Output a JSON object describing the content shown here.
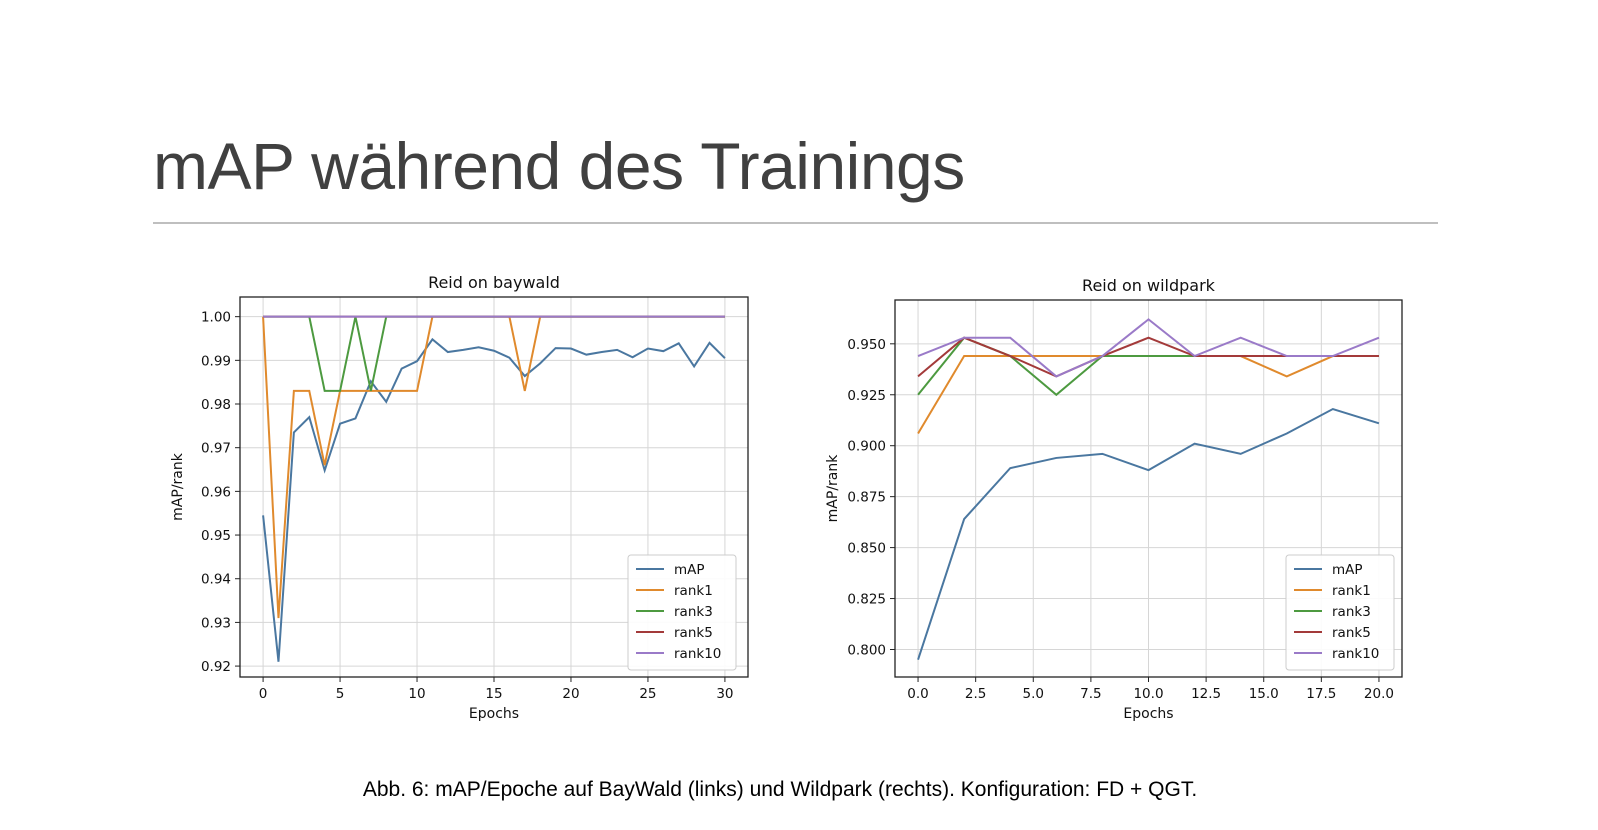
{
  "slide": {
    "title": "mAP während des Trainings",
    "caption": "Abb. 6: mAP/Epoche auf BayWald (links) und Wildpark (rechts). Konfiguration: FD + QGT."
  },
  "chart_data": [
    {
      "type": "line",
      "title": "Reid on baywald",
      "xlabel": "Epochs",
      "ylabel": "mAP/rank",
      "xlim": [
        -1.5,
        31.5
      ],
      "ylim": [
        0.9175,
        1.0045
      ],
      "xticks": [
        0,
        5,
        10,
        15,
        20,
        25,
        30
      ],
      "xtick_labels": [
        "0",
        "5",
        "10",
        "15",
        "20",
        "25",
        "30"
      ],
      "yticks": [
        0.92,
        0.93,
        0.94,
        0.95,
        0.96,
        0.97,
        0.98,
        0.99,
        1.0
      ],
      "ytick_labels": [
        "0.92",
        "0.93",
        "0.94",
        "0.95",
        "0.96",
        "0.97",
        "0.98",
        "0.99",
        "1.00"
      ],
      "grid": true,
      "legend_position": "lower-right",
      "series": [
        {
          "name": "mAP",
          "color": "#4a77a0",
          "x": [
            0,
            1,
            2,
            3,
            4,
            5,
            6,
            7,
            8,
            9,
            10,
            11,
            12,
            13,
            14,
            15,
            16,
            17,
            18,
            19,
            20,
            21,
            22,
            23,
            24,
            25,
            26,
            27,
            28,
            29,
            30
          ],
          "y": [
            0.9545,
            0.921,
            0.9735,
            0.977,
            0.9648,
            0.9755,
            0.9767,
            0.9852,
            0.9805,
            0.9881,
            0.9898,
            0.9948,
            0.9919,
            0.9924,
            0.993,
            0.9922,
            0.9906,
            0.9864,
            0.9893,
            0.9928,
            0.9927,
            0.9913,
            0.9919,
            0.9924,
            0.9907,
            0.9927,
            0.9921,
            0.9939,
            0.9886,
            0.994,
            0.9905
          ]
        },
        {
          "name": "rank1",
          "color": "#e08a2d",
          "x": [
            0,
            1,
            2,
            3,
            4,
            5,
            6,
            7,
            8,
            9,
            10,
            11,
            12,
            13,
            14,
            15,
            16,
            17,
            18,
            19,
            20,
            21,
            22,
            23,
            24,
            25,
            26,
            27,
            28,
            29,
            30
          ],
          "y": [
            1.0,
            0.931,
            0.983,
            0.983,
            0.966,
            0.983,
            0.983,
            0.983,
            0.983,
            0.983,
            0.983,
            1.0,
            1.0,
            1.0,
            1.0,
            1.0,
            1.0,
            0.983,
            1.0,
            1.0,
            1.0,
            1.0,
            1.0,
            1.0,
            1.0,
            1.0,
            1.0,
            1.0,
            1.0,
            1.0,
            1.0
          ]
        },
        {
          "name": "rank3",
          "color": "#4d9a40",
          "x": [
            0,
            1,
            2,
            3,
            4,
            5,
            6,
            7,
            8,
            9,
            10,
            11,
            12,
            13,
            14,
            15,
            16,
            17,
            18,
            19,
            20,
            21,
            22,
            23,
            24,
            25,
            26,
            27,
            28,
            29,
            30
          ],
          "y": [
            1.0,
            1.0,
            1.0,
            1.0,
            0.983,
            0.983,
            1.0,
            0.983,
            1.0,
            1.0,
            1.0,
            1.0,
            1.0,
            1.0,
            1.0,
            1.0,
            1.0,
            1.0,
            1.0,
            1.0,
            1.0,
            1.0,
            1.0,
            1.0,
            1.0,
            1.0,
            1.0,
            1.0,
            1.0,
            1.0,
            1.0
          ]
        },
        {
          "name": "rank5",
          "color": "#a33a3a",
          "x": [
            0,
            1,
            2,
            3,
            4,
            5,
            6,
            7,
            8,
            9,
            10,
            11,
            12,
            13,
            14,
            15,
            16,
            17,
            18,
            19,
            20,
            21,
            22,
            23,
            24,
            25,
            26,
            27,
            28,
            29,
            30
          ],
          "y": [
            1.0,
            1.0,
            1.0,
            1.0,
            1.0,
            1.0,
            1.0,
            1.0,
            1.0,
            1.0,
            1.0,
            1.0,
            1.0,
            1.0,
            1.0,
            1.0,
            1.0,
            1.0,
            1.0,
            1.0,
            1.0,
            1.0,
            1.0,
            1.0,
            1.0,
            1.0,
            1.0,
            1.0,
            1.0,
            1.0,
            1.0
          ]
        },
        {
          "name": "rank10",
          "color": "#9a7ac8",
          "x": [
            0,
            1,
            2,
            3,
            4,
            5,
            6,
            7,
            8,
            9,
            10,
            11,
            12,
            13,
            14,
            15,
            16,
            17,
            18,
            19,
            20,
            21,
            22,
            23,
            24,
            25,
            26,
            27,
            28,
            29,
            30
          ],
          "y": [
            1.0,
            1.0,
            1.0,
            1.0,
            1.0,
            1.0,
            1.0,
            1.0,
            1.0,
            1.0,
            1.0,
            1.0,
            1.0,
            1.0,
            1.0,
            1.0,
            1.0,
            1.0,
            1.0,
            1.0,
            1.0,
            1.0,
            1.0,
            1.0,
            1.0,
            1.0,
            1.0,
            1.0,
            1.0,
            1.0,
            1.0
          ]
        }
      ]
    },
    {
      "type": "line",
      "title": "Reid on wildpark",
      "xlabel": "Epochs",
      "ylabel": "mAP/rank",
      "xlim": [
        -1.0,
        21.0
      ],
      "ylim": [
        0.7865,
        0.9715
      ],
      "xticks": [
        0,
        2.5,
        5,
        7.5,
        10,
        12.5,
        15,
        17.5,
        20
      ],
      "xtick_labels": [
        "0.0",
        "2.5",
        "5.0",
        "7.5",
        "10.0",
        "12.5",
        "15.0",
        "17.5",
        "20.0"
      ],
      "yticks": [
        0.8,
        0.825,
        0.85,
        0.875,
        0.9,
        0.925,
        0.95
      ],
      "ytick_labels": [
        "0.800",
        "0.825",
        "0.850",
        "0.875",
        "0.900",
        "0.925",
        "0.950"
      ],
      "grid": true,
      "legend_position": "lower-right",
      "series": [
        {
          "name": "mAP",
          "color": "#4a77a0",
          "x": [
            0,
            2,
            4,
            6,
            8,
            10,
            12,
            14,
            16,
            18,
            20
          ],
          "y": [
            0.795,
            0.864,
            0.889,
            0.894,
            0.896,
            0.888,
            0.901,
            0.896,
            0.906,
            0.918,
            0.911
          ]
        },
        {
          "name": "rank1",
          "color": "#e08a2d",
          "x": [
            0,
            2,
            4,
            6,
            8,
            10,
            12,
            14,
            16,
            18,
            20
          ],
          "y": [
            0.906,
            0.944,
            0.944,
            0.944,
            0.944,
            0.944,
            0.944,
            0.944,
            0.934,
            0.944,
            0.944
          ]
        },
        {
          "name": "rank3",
          "color": "#4d9a40",
          "x": [
            0,
            2,
            4,
            6,
            8,
            10,
            12,
            14,
            16,
            18,
            20
          ],
          "y": [
            0.925,
            0.953,
            0.944,
            0.925,
            0.944,
            0.944,
            0.944,
            0.944,
            0.944,
            0.944,
            0.944
          ]
        },
        {
          "name": "rank5",
          "color": "#a33a3a",
          "x": [
            0,
            2,
            4,
            6,
            8,
            10,
            12,
            14,
            16,
            18,
            20
          ],
          "y": [
            0.934,
            0.953,
            0.944,
            0.934,
            0.944,
            0.953,
            0.944,
            0.944,
            0.944,
            0.944,
            0.944
          ]
        },
        {
          "name": "rank10",
          "color": "#9a7ac8",
          "x": [
            0,
            2,
            4,
            6,
            8,
            10,
            12,
            14,
            16,
            18,
            20
          ],
          "y": [
            0.944,
            0.953,
            0.953,
            0.934,
            0.944,
            0.962,
            0.944,
            0.953,
            0.944,
            0.944,
            0.953
          ]
        }
      ]
    }
  ]
}
